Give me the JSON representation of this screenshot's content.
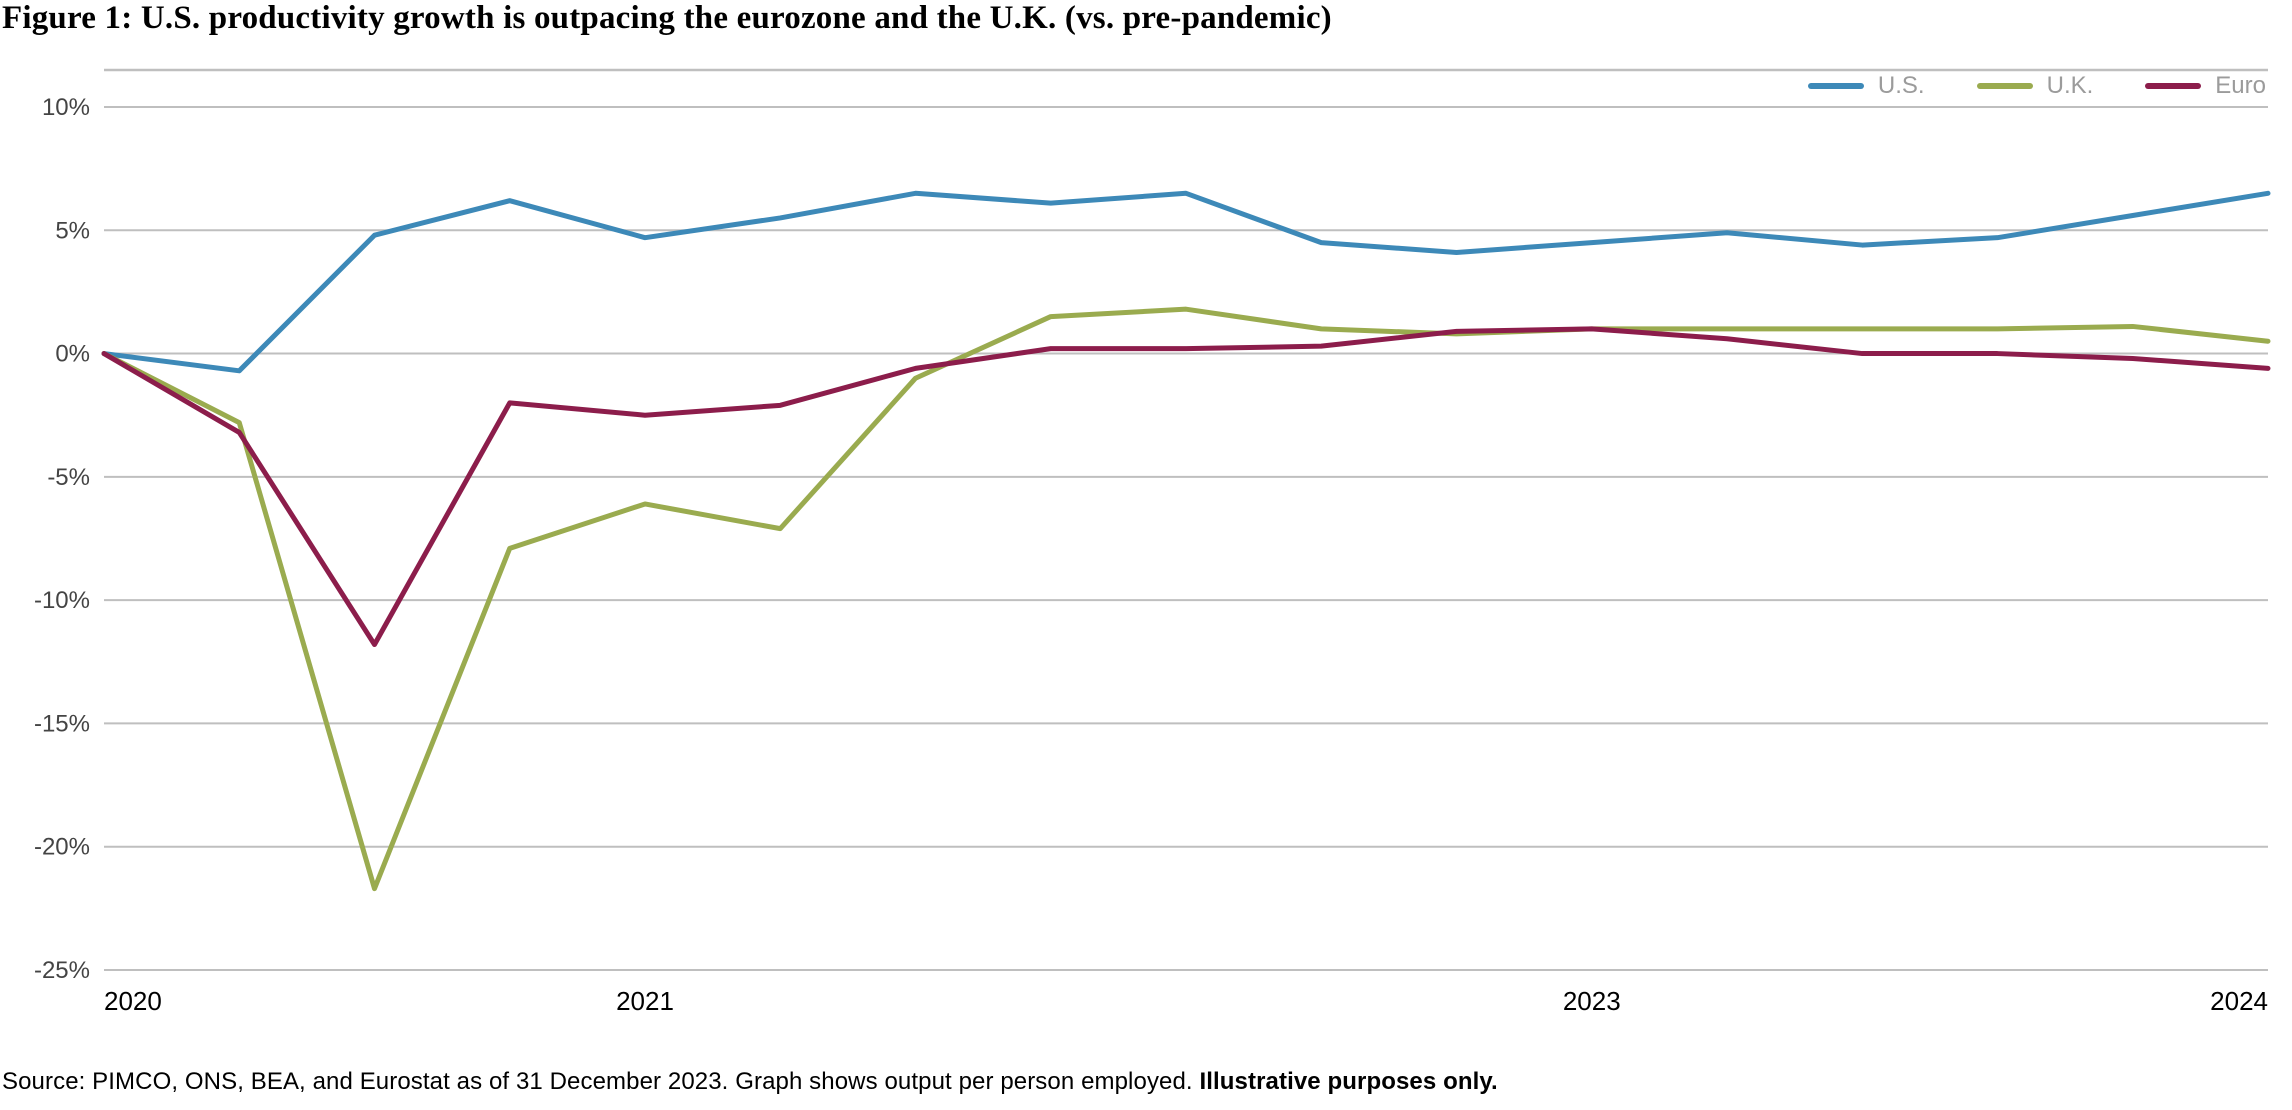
{
  "title": "Figure 1: U.S. productivity growth is outpacing the eurozone and the U.K. (vs. pre-pandemic)",
  "caption_prefix": "Source: PIMCO, ONS, BEA, and Eurostat as of 31 December 2023. Graph shows output per person employed. ",
  "caption_bold": "Illustrative purposes only.",
  "chart": {
    "type": "line",
    "background_color": "#ffffff",
    "grid_color": "#bfbfbf",
    "y": {
      "min": -25,
      "max": 11.5,
      "ticks": [
        -25,
        -20,
        -15,
        -10,
        -5,
        0,
        5,
        10
      ],
      "tick_labels": [
        "-25%",
        "-20%",
        "-15%",
        "-10%",
        "-5%",
        "0%",
        "5%",
        "10%"
      ],
      "label_fontsize": 24,
      "label_color": "#444444"
    },
    "x": {
      "min": 0,
      "max": 16,
      "ticks": [
        0,
        4,
        11,
        16
      ],
      "tick_labels": [
        "2020",
        "2021",
        "2023",
        "2024"
      ],
      "label_fontsize": 26,
      "label_color": "#000000"
    },
    "line_width": 5,
    "legend": {
      "position": "top-right",
      "label_color": "#9b9b9b",
      "label_fontsize": 24,
      "swatch_width": 56,
      "swatch_height": 6
    },
    "series": [
      {
        "name": "U.S.",
        "color": "#3d89b8",
        "x": [
          0,
          1,
          2,
          3,
          4,
          5,
          6,
          7,
          8,
          9,
          10,
          11,
          12,
          13,
          14,
          15,
          16
        ],
        "y": [
          0.0,
          -0.7,
          4.8,
          6.2,
          4.7,
          5.5,
          6.5,
          6.1,
          6.5,
          4.5,
          4.1,
          4.5,
          4.9,
          4.4,
          4.7,
          5.6,
          6.5
        ]
      },
      {
        "name": "U.K.",
        "color": "#9aab4f",
        "x": [
          0,
          1,
          2,
          3,
          4,
          5,
          6,
          7,
          8,
          9,
          10,
          11,
          12,
          13,
          14,
          15,
          16
        ],
        "y": [
          0.0,
          -2.8,
          -21.7,
          -7.9,
          -6.1,
          -7.1,
          -1.0,
          1.5,
          1.8,
          1.0,
          0.8,
          1.0,
          1.0,
          1.0,
          1.0,
          1.1,
          0.5
        ]
      },
      {
        "name": "Euro",
        "color": "#8c1d4b",
        "x": [
          0,
          1,
          2,
          3,
          4,
          5,
          6,
          7,
          8,
          9,
          10,
          11,
          12,
          13,
          14,
          15,
          16
        ],
        "y": [
          0.0,
          -3.2,
          -11.8,
          -2.0,
          -2.5,
          -2.1,
          -0.6,
          0.2,
          0.2,
          0.3,
          0.9,
          1.0,
          0.6,
          0.0,
          0.0,
          -0.2,
          -0.6
        ]
      }
    ]
  }
}
